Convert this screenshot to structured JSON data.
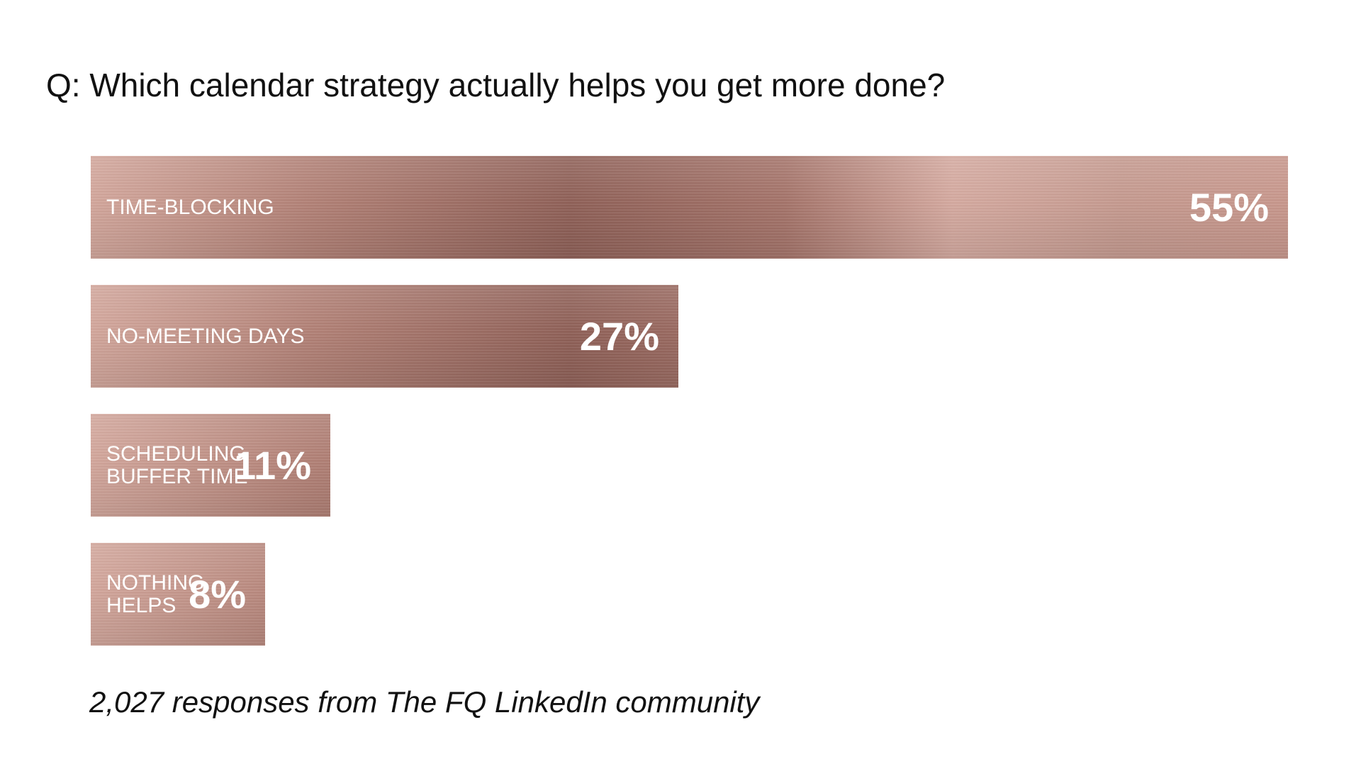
{
  "question": "Q: Which calendar strategy actually helps you get more done?",
  "footnote": "2,027 responses from The FQ LinkedIn community",
  "colors": {
    "bar_light": "#d4a79c",
    "bar_dark": "#8f5f56",
    "label_text": "#ffffff",
    "body_text": "#111111"
  },
  "chart_data": {
    "type": "bar",
    "orientation": "horizontal",
    "categories": [
      "TIME-BLOCKING",
      "NO-MEETING DAYS",
      "SCHEDULING\nBUFFER TIME",
      "NOTHING\nHELPS"
    ],
    "values": [
      55,
      27,
      11,
      8
    ],
    "value_labels": [
      "55%",
      "27%",
      "11%",
      "8%"
    ],
    "xlim": [
      0,
      55
    ],
    "grid": false
  }
}
